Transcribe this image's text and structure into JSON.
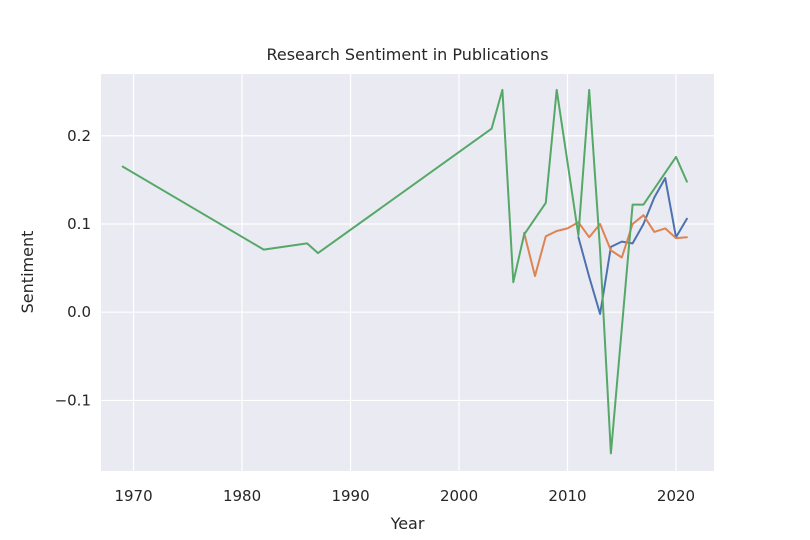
{
  "chart_data": {
    "type": "line",
    "title": "Research Sentiment in Publications",
    "xlabel": "Year",
    "ylabel": "Sentiment",
    "xlim": [
      1967,
      2023.5
    ],
    "ylim": [
      -0.18,
      0.27
    ],
    "x_ticks": [
      1970,
      1980,
      1990,
      2000,
      2010,
      2020
    ],
    "y_ticks": [
      -0.1,
      0.0,
      0.1,
      0.2
    ],
    "y_tick_labels": [
      "−0.1",
      "0.0",
      "0.1",
      "0.2"
    ],
    "grid": true,
    "legend": "none",
    "colors": {
      "plot_background": "#eaeaf2",
      "grid": "#ffffff",
      "blue": "#4c72b0",
      "orange": "#dd8452",
      "green": "#55a868"
    },
    "series": [
      {
        "color": "#4c72b0",
        "x": [
          2011,
          2012,
          2013,
          2014,
          2015,
          2016,
          2017,
          2018,
          2019,
          2020,
          2021
        ],
        "y": [
          0.085,
          0.04,
          -0.002,
          0.074,
          0.08,
          0.078,
          0.1,
          0.13,
          0.152,
          0.085,
          0.106
        ]
      },
      {
        "color": "#dd8452",
        "x": [
          2006,
          2007,
          2008,
          2009,
          2010,
          2011,
          2012,
          2013,
          2014,
          2015,
          2016,
          2017,
          2018,
          2019,
          2020,
          2021
        ],
        "y": [
          0.09,
          0.041,
          0.086,
          0.092,
          0.095,
          0.102,
          0.085,
          0.1,
          0.07,
          0.062,
          0.1,
          0.11,
          0.091,
          0.095,
          0.084,
          0.085
        ]
      },
      {
        "color": "#55a868",
        "x": [
          1969,
          1982,
          1986,
          1987,
          2003,
          2004,
          2005,
          2006,
          2008,
          2009,
          2011,
          2012,
          2013,
          2014,
          2016,
          2017,
          2020,
          2021
        ],
        "y": [
          0.165,
          0.071,
          0.078,
          0.067,
          0.208,
          0.252,
          0.034,
          0.088,
          0.124,
          0.252,
          0.087,
          0.252,
          0.07,
          -0.16,
          0.122,
          0.122,
          0.176,
          0.148
        ]
      }
    ]
  }
}
